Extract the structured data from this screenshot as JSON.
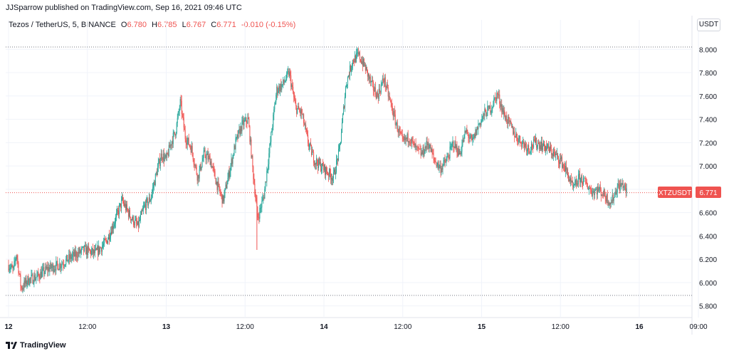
{
  "publisher_line": "JJSparrow published on TradingView.com, Sep 16, 2021 09:46 UTC",
  "legend": {
    "symbol": "Tezos / TetherUS, 5, BINANCE",
    "open_label": "O",
    "open": "6.780",
    "high_label": "H",
    "high": "6.785",
    "low_label": "L",
    "low": "6.767",
    "close_label": "C",
    "close": "6.771",
    "change": "-0.010 (-0.15%)"
  },
  "unit_badge": "USDT",
  "price_tag": {
    "ticker": "XTZUSDT",
    "value": "6.771"
  },
  "footer_brand": "TradingView",
  "colors": {
    "up": "#26a69a",
    "down": "#ef5350",
    "grid": "#f0f3fa",
    "dotted": "#787b86"
  },
  "chart_data": {
    "type": "candlestick",
    "x_tick_labels": [
      "12",
      "12:00",
      "13",
      "12:00",
      "14",
      "12:00",
      "15",
      "12:00",
      "16",
      "09:00"
    ],
    "y_tick_labels": [
      "5.800",
      "6.000",
      "6.200",
      "6.400",
      "6.600",
      "6.800",
      "7.000",
      "7.200",
      "7.400",
      "7.600",
      "7.800",
      "8.000"
    ],
    "ylim": [
      5.7,
      8.13
    ],
    "high_line": 8.02,
    "low_line": 5.89,
    "last_price": 6.771,
    "series_close": [
      [
        0.0,
        6.15
      ],
      [
        0.03,
        6.1
      ],
      [
        0.05,
        6.25
      ],
      [
        0.08,
        5.95
      ],
      [
        0.12,
        6.02
      ],
      [
        0.18,
        6.05
      ],
      [
        0.25,
        6.12
      ],
      [
        0.32,
        6.15
      ],
      [
        0.4,
        6.22
      ],
      [
        0.48,
        6.28
      ],
      [
        0.55,
        6.25
      ],
      [
        0.62,
        6.35
      ],
      [
        0.68,
        6.55
      ],
      [
        0.72,
        6.7
      ],
      [
        0.78,
        6.55
      ],
      [
        0.82,
        6.48
      ],
      [
        0.86,
        6.65
      ],
      [
        0.9,
        6.72
      ],
      [
        0.94,
        6.95
      ],
      [
        0.97,
        7.1
      ],
      [
        1.0,
        7.05
      ],
      [
        1.03,
        7.2
      ],
      [
        1.06,
        7.3
      ],
      [
        1.09,
        7.55
      ],
      [
        1.12,
        7.25
      ],
      [
        1.16,
        7.15
      ],
      [
        1.2,
        6.9
      ],
      [
        1.24,
        7.1
      ],
      [
        1.28,
        7.05
      ],
      [
        1.32,
        6.85
      ],
      [
        1.36,
        6.7
      ],
      [
        1.4,
        6.95
      ],
      [
        1.44,
        7.2
      ],
      [
        1.48,
        7.35
      ],
      [
        1.52,
        7.4
      ],
      [
        1.55,
        6.95
      ],
      [
        1.58,
        6.55
      ],
      [
        1.62,
        6.75
      ],
      [
        1.66,
        7.2
      ],
      [
        1.7,
        7.65
      ],
      [
        1.74,
        7.7
      ],
      [
        1.78,
        7.8
      ],
      [
        1.82,
        7.5
      ],
      [
        1.86,
        7.45
      ],
      [
        1.9,
        7.2
      ],
      [
        1.94,
        7.05
      ],
      [
        1.98,
        7.0
      ],
      [
        2.02,
        6.95
      ],
      [
        2.06,
        6.9
      ],
      [
        2.1,
        7.15
      ],
      [
        2.14,
        7.7
      ],
      [
        2.18,
        7.9
      ],
      [
        2.22,
        7.95
      ],
      [
        2.26,
        7.85
      ],
      [
        2.3,
        7.7
      ],
      [
        2.34,
        7.6
      ],
      [
        2.38,
        7.75
      ],
      [
        2.42,
        7.55
      ],
      [
        2.46,
        7.35
      ],
      [
        2.5,
        7.2
      ],
      [
        2.54,
        7.25
      ],
      [
        2.58,
        7.15
      ],
      [
        2.62,
        7.1
      ],
      [
        2.66,
        7.2
      ],
      [
        2.7,
        7.05
      ],
      [
        2.74,
        6.98
      ],
      [
        2.78,
        7.05
      ],
      [
        2.82,
        7.2
      ],
      [
        2.86,
        7.1
      ],
      [
        2.9,
        7.3
      ],
      [
        2.94,
        7.2
      ],
      [
        2.98,
        7.35
      ],
      [
        3.02,
        7.45
      ],
      [
        3.06,
        7.5
      ],
      [
        3.1,
        7.62
      ],
      [
        3.14,
        7.45
      ],
      [
        3.18,
        7.35
      ],
      [
        3.22,
        7.25
      ],
      [
        3.26,
        7.2
      ],
      [
        3.3,
        7.15
      ],
      [
        3.34,
        7.2
      ],
      [
        3.38,
        7.18
      ],
      [
        3.42,
        7.15
      ],
      [
        3.46,
        7.1
      ],
      [
        3.5,
        7.05
      ],
      [
        3.54,
        6.95
      ],
      [
        3.58,
        6.8
      ],
      [
        3.62,
        6.9
      ],
      [
        3.66,
        6.85
      ],
      [
        3.7,
        6.78
      ],
      [
        3.74,
        6.8
      ],
      [
        3.78,
        6.75
      ],
      [
        3.82,
        6.68
      ],
      [
        3.86,
        6.82
      ],
      [
        3.9,
        6.84
      ],
      [
        3.92,
        6.77
      ]
    ]
  }
}
